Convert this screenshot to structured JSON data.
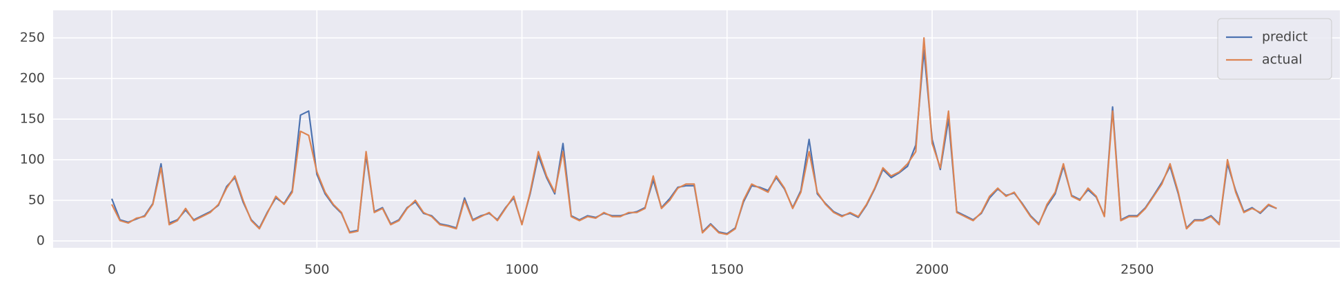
{
  "chart_data": {
    "type": "line",
    "x": [
      0,
      20,
      40,
      60,
      80,
      100,
      120,
      140,
      160,
      180,
      200,
      220,
      240,
      260,
      280,
      300,
      320,
      340,
      360,
      380,
      400,
      420,
      440,
      460,
      480,
      500,
      520,
      540,
      560,
      580,
      600,
      620,
      640,
      660,
      680,
      700,
      720,
      740,
      760,
      780,
      800,
      820,
      840,
      860,
      880,
      900,
      920,
      940,
      960,
      980,
      1000,
      1020,
      1040,
      1060,
      1080,
      1100,
      1120,
      1140,
      1160,
      1180,
      1200,
      1220,
      1240,
      1260,
      1280,
      1300,
      1320,
      1340,
      1360,
      1380,
      1400,
      1420,
      1440,
      1460,
      1480,
      1500,
      1520,
      1540,
      1560,
      1580,
      1600,
      1620,
      1640,
      1660,
      1680,
      1700,
      1720,
      1740,
      1760,
      1780,
      1800,
      1820,
      1840,
      1860,
      1880,
      1900,
      1920,
      1940,
      1960,
      1980,
      2000,
      2020,
      2040,
      2060,
      2080,
      2100,
      2120,
      2140,
      2160,
      2180,
      2200,
      2220,
      2240,
      2260,
      2280,
      2300,
      2320,
      2340,
      2360,
      2380,
      2400,
      2420,
      2440,
      2460,
      2480,
      2500,
      2520,
      2540,
      2560,
      2580,
      2600,
      2620,
      2640,
      2660,
      2680,
      2700,
      2720,
      2740,
      2760,
      2780,
      2800,
      2820,
      2840
    ],
    "series": [
      {
        "name": "predict",
        "color": "#4c72b0",
        "values": [
          52,
          26,
          23,
          27,
          31,
          46,
          95,
          22,
          26,
          38,
          26,
          31,
          36,
          44,
          67,
          78,
          48,
          26,
          16,
          36,
          53,
          46,
          62,
          155,
          160,
          82,
          58,
          44,
          34,
          11,
          13,
          105,
          36,
          41,
          21,
          26,
          41,
          48,
          34,
          31,
          21,
          19,
          16,
          53,
          26,
          31,
          34,
          26,
          41,
          53,
          21,
          58,
          105,
          78,
          58,
          120,
          31,
          26,
          31,
          29,
          34,
          31,
          31,
          34,
          36,
          41,
          75,
          41,
          52,
          66,
          68,
          68,
          11,
          21,
          11,
          9,
          16,
          48,
          68,
          66,
          62,
          78,
          64,
          41,
          62,
          125,
          58,
          46,
          36,
          31,
          34,
          29,
          44,
          64,
          88,
          78,
          84,
          92,
          118,
          235,
          125,
          88,
          150,
          36,
          31,
          26,
          34,
          53,
          64,
          56,
          59,
          46,
          31,
          21,
          43,
          58,
          92,
          56,
          51,
          63,
          54,
          31,
          165,
          26,
          31,
          31,
          41,
          56,
          72,
          92,
          58,
          16,
          26,
          26,
          31,
          21,
          95,
          62,
          36,
          41,
          34,
          44,
          40
        ]
      },
      {
        "name": "actual",
        "color": "#dd8452",
        "values": [
          45,
          25,
          22,
          28,
          30,
          45,
          90,
          20,
          25,
          40,
          25,
          30,
          35,
          45,
          65,
          80,
          50,
          25,
          15,
          35,
          55,
          45,
          60,
          135,
          130,
          85,
          60,
          45,
          35,
          10,
          12,
          110,
          35,
          40,
          20,
          25,
          40,
          50,
          35,
          30,
          20,
          18,
          15,
          50,
          25,
          30,
          35,
          25,
          40,
          55,
          20,
          60,
          110,
          80,
          60,
          110,
          30,
          25,
          30,
          28,
          35,
          30,
          30,
          35,
          35,
          40,
          80,
          40,
          50,
          65,
          70,
          70,
          10,
          20,
          10,
          8,
          15,
          50,
          70,
          65,
          60,
          80,
          65,
          40,
          60,
          110,
          60,
          45,
          35,
          30,
          35,
          30,
          45,
          65,
          90,
          80,
          85,
          95,
          110,
          250,
          120,
          90,
          160,
          35,
          30,
          25,
          35,
          55,
          65,
          55,
          60,
          45,
          30,
          20,
          45,
          60,
          95,
          55,
          50,
          65,
          55,
          30,
          160,
          25,
          30,
          30,
          40,
          55,
          70,
          95,
          60,
          15,
          25,
          25,
          30,
          20,
          100,
          60,
          35,
          40,
          35,
          45,
          40
        ]
      }
    ],
    "xlim": [
      -143,
      2994
    ],
    "ylim": [
      -8.5,
      284
    ],
    "xticks": [
      0,
      500,
      1000,
      1500,
      2000,
      2500
    ],
    "yticks": [
      0,
      50,
      100,
      150,
      200,
      250
    ],
    "grid": true,
    "legend": "upper right"
  }
}
